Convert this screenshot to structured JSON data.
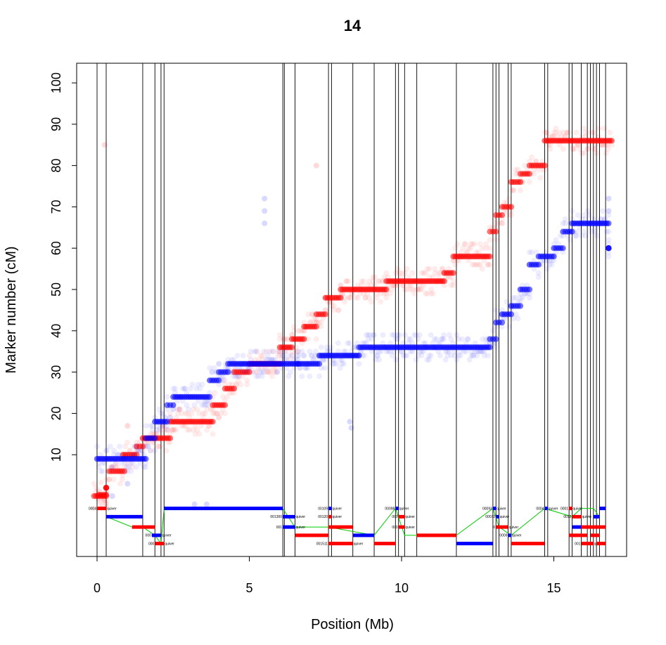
{
  "chart_data": {
    "type": "scatter",
    "title": "14",
    "xlabel": "Position (Mb)",
    "ylabel": "Marker number (cM)",
    "xlim": [
      -0.65,
      17.4
    ],
    "ylim": [
      -26,
      105
    ],
    "x_ticks": [
      0,
      5,
      10,
      15
    ],
    "y_ticks": [
      10,
      20,
      30,
      40,
      50,
      60,
      70,
      80,
      90,
      100
    ],
    "grid": false,
    "legend": "none",
    "colors": {
      "red": "#ff0000",
      "blue": "#0000ff",
      "green": "#00cc00",
      "black": "#000000"
    },
    "boundaries": [
      0.0,
      0.3,
      1.5,
      1.9,
      2.1,
      2.2,
      6.1,
      6.15,
      6.5,
      7.6,
      7.7,
      8.4,
      9.1,
      9.8,
      9.9,
      10.1,
      10.5,
      11.8,
      13.0,
      13.1,
      13.2,
      13.5,
      13.6,
      14.7,
      14.8,
      15.5,
      15.6,
      15.9,
      16.1,
      16.2,
      16.3,
      16.4,
      16.5,
      16.7
    ],
    "series": [
      {
        "name": "",
        "color": "#ff0000",
        "segments": [
          [
            -0.1,
            0.0,
            0.3
          ],
          [
            0.05,
            0.3,
            0.3
          ],
          [
            0.3,
            2.0,
            0.3
          ],
          [
            0.4,
            6.0,
            0.9
          ],
          [
            0.85,
            10.0,
            1.3
          ],
          [
            1.3,
            12.0,
            1.5
          ],
          [
            1.5,
            14.0,
            2.4
          ],
          [
            2.4,
            18.0,
            3.8
          ],
          [
            3.8,
            22.0,
            4.2
          ],
          [
            4.2,
            26.0,
            4.5
          ],
          [
            4.5,
            30.0,
            5.0
          ],
          [
            5.0,
            32.0,
            6.0
          ],
          [
            6.0,
            36.0,
            6.4
          ],
          [
            6.4,
            38.0,
            6.8
          ],
          [
            6.8,
            41.0,
            7.2
          ],
          [
            7.2,
            44.0,
            7.5
          ],
          [
            7.5,
            48.0,
            8.0
          ],
          [
            8.0,
            50.0,
            9.5
          ],
          [
            9.5,
            52.0,
            11.4
          ],
          [
            11.4,
            54.0,
            11.7
          ],
          [
            11.7,
            58.0,
            12.9
          ],
          [
            12.9,
            64.0,
            13.1
          ],
          [
            13.1,
            68.0,
            13.3
          ],
          [
            13.3,
            70.0,
            13.6
          ],
          [
            13.6,
            76.0,
            13.9
          ],
          [
            13.9,
            78.0,
            14.2
          ],
          [
            14.2,
            80.0,
            14.7
          ],
          [
            14.7,
            86.0,
            16.9
          ]
        ]
      },
      {
        "name": "",
        "color": "#0000ff",
        "segments": [
          [
            0.0,
            9.0,
            1.6
          ],
          [
            1.6,
            14.0,
            1.9
          ],
          [
            1.9,
            18.0,
            2.3
          ],
          [
            2.3,
            22.0,
            2.5
          ],
          [
            2.5,
            24.0,
            3.7
          ],
          [
            3.7,
            28.0,
            4.0
          ],
          [
            4.0,
            30.0,
            4.3
          ],
          [
            4.3,
            32.0,
            6.6
          ],
          [
            6.6,
            32.0,
            7.3
          ],
          [
            7.3,
            34.0,
            8.6
          ],
          [
            8.6,
            36.0,
            12.9
          ],
          [
            12.9,
            38.0,
            13.1
          ],
          [
            13.1,
            42.0,
            13.3
          ],
          [
            13.3,
            44.0,
            13.6
          ],
          [
            13.6,
            46.0,
            13.9
          ],
          [
            13.9,
            50.0,
            14.2
          ],
          [
            14.2,
            56.0,
            14.5
          ],
          [
            14.5,
            58.0,
            15.0
          ],
          [
            15.0,
            60.0,
            15.3
          ],
          [
            15.3,
            64.0,
            15.6
          ],
          [
            15.6,
            66.0,
            16.8
          ],
          [
            16.8,
            60.0,
            16.8
          ]
        ]
      }
    ],
    "contigs": [
      {
        "label": "0004",
        "color": "#ff0000",
        "x0": 0.0,
        "x1": 0.3,
        "y": -3
      },
      {
        "label": "",
        "color": "#0000ff",
        "x0": 0.3,
        "x1": 1.5,
        "y": -5
      },
      {
        "label": "",
        "color": "#ff0000",
        "x0": 1.15,
        "x1": 1.9,
        "y": -7.5
      },
      {
        "label": "000",
        "color": "#0000ff",
        "x0": 1.8,
        "x1": 2.1,
        "y": -9.5
      },
      {
        "label": "000",
        "color": "#ff0000",
        "x0": 1.9,
        "x1": 2.2,
        "y": -11.5
      },
      {
        "label": "",
        "color": "#0000ff",
        "x0": 2.2,
        "x1": 6.1,
        "y": -3
      },
      {
        "label": "001300",
        "color": "#0000ff",
        "x0": 6.1,
        "x1": 6.5,
        "y": -5
      },
      {
        "label": "001",
        "color": "#0000ff",
        "x0": 6.1,
        "x1": 6.5,
        "y": -7.5
      },
      {
        "label": "",
        "color": "#ff0000",
        "x0": 6.5,
        "x1": 7.6,
        "y": -9.5
      },
      {
        "label": "00109",
        "color": "#0000ff",
        "x0": 7.6,
        "x1": 7.7,
        "y": -3
      },
      {
        "label": "00120",
        "color": "#ff0000",
        "x0": 7.6,
        "x1": 7.7,
        "y": -5
      },
      {
        "label": "",
        "color": "#ff0000",
        "x0": 7.6,
        "x1": 8.4,
        "y": -7.5
      },
      {
        "label": "001511",
        "color": "#ff0000",
        "x0": 7.6,
        "x1": 8.4,
        "y": -11.5
      },
      {
        "label": "",
        "color": "#0000ff",
        "x0": 8.4,
        "x1": 9.1,
        "y": -9.5
      },
      {
        "label": "00098",
        "color": "#0000ff",
        "x0": 9.8,
        "x1": 9.9,
        "y": -3
      },
      {
        "label": "000",
        "color": "#ff0000",
        "x0": 9.9,
        "x1": 10.1,
        "y": -5
      },
      {
        "label": "000",
        "color": "#ff0000",
        "x0": 9.9,
        "x1": 10.1,
        "y": -7.5
      },
      {
        "label": "",
        "color": "#ff0000",
        "x0": 9.1,
        "x1": 9.8,
        "y": -11.5
      },
      {
        "label": "",
        "color": "#ff0000",
        "x0": 10.5,
        "x1": 11.8,
        "y": -9.5
      },
      {
        "label": "",
        "color": "#0000ff",
        "x0": 11.8,
        "x1": 13.0,
        "y": -11.5
      },
      {
        "label": "00093",
        "color": "#0000ff",
        "x0": 13.0,
        "x1": 13.1,
        "y": -3
      },
      {
        "label": "00072",
        "color": "#0000ff",
        "x0": 13.1,
        "x1": 13.2,
        "y": -5
      },
      {
        "label": "0",
        "color": "#ff0000",
        "x0": 13.1,
        "x1": 13.5,
        "y": -7.5
      },
      {
        "label": "0009",
        "color": "#0000ff",
        "x0": 13.5,
        "x1": 13.6,
        "y": -9.5
      },
      {
        "label": "",
        "color": "#ff0000",
        "x0": 13.6,
        "x1": 14.7,
        "y": -11.5
      },
      {
        "label": "0004",
        "color": "#0000ff",
        "x0": 14.7,
        "x1": 14.8,
        "y": -3
      },
      {
        "label": "0001",
        "color": "#ff0000",
        "x0": 15.5,
        "x1": 15.6,
        "y": -3
      },
      {
        "label": "0012",
        "color": "#ff0000",
        "x0": 15.6,
        "x1": 15.9,
        "y": -5
      },
      {
        "label": "",
        "color": "#0000ff",
        "x0": 15.6,
        "x1": 15.9,
        "y": -7.5
      },
      {
        "label": "",
        "color": "#ff0000",
        "x0": 15.9,
        "x1": 16.4,
        "y": -7.5
      },
      {
        "label": "",
        "color": "#ff0000",
        "x0": 15.5,
        "x1": 16.1,
        "y": -9.5
      },
      {
        "label": "001",
        "color": "#ff0000",
        "x0": 15.9,
        "x1": 16.3,
        "y": -11.5
      },
      {
        "label": "",
        "color": "#0000ff",
        "x0": 16.5,
        "x1": 16.7,
        "y": -3
      },
      {
        "label": "",
        "color": "#0000ff",
        "x0": 16.3,
        "x1": 16.5,
        "y": -5
      },
      {
        "label": "",
        "color": "#ff0000",
        "x0": 16.4,
        "x1": 16.7,
        "y": -7.5
      },
      {
        "label": "",
        "color": "#ff0000",
        "x0": 16.2,
        "x1": 16.5,
        "y": -9.5
      },
      {
        "label": "",
        "color": "#ff0000",
        "x0": 16.4,
        "x1": 16.7,
        "y": -11.5
      }
    ],
    "contig_suffix": "quiver",
    "green_path": [
      [
        0.3,
        -5
      ],
      [
        1.15,
        -7.5
      ],
      [
        1.5,
        -7.5
      ],
      [
        1.9,
        -9.5
      ],
      [
        2.1,
        -11.5
      ],
      [
        2.2,
        -3
      ],
      [
        6.1,
        -3
      ],
      [
        6.5,
        -7.5
      ],
      [
        7.6,
        -7.5
      ],
      [
        9.1,
        -9.5
      ],
      [
        9.8,
        -3
      ],
      [
        10.1,
        -9.5
      ],
      [
        11.8,
        -9.5
      ],
      [
        13.0,
        -3
      ],
      [
        13.2,
        -7.5
      ],
      [
        13.6,
        -9.5
      ],
      [
        14.7,
        -3
      ],
      [
        15.6,
        -5
      ],
      [
        15.9,
        -3
      ],
      [
        16.3,
        -3
      ],
      [
        16.5,
        -5
      ]
    ],
    "outliers": [
      {
        "color": "#ff0000",
        "x": 0.25,
        "y": 85
      },
      {
        "color": "#ff0000",
        "x": 7.2,
        "y": 80
      },
      {
        "color": "#0000ff",
        "x": 5.5,
        "y": 72
      },
      {
        "color": "#0000ff",
        "x": 5.5,
        "y": 69
      },
      {
        "color": "#0000ff",
        "x": 5.5,
        "y": 66
      },
      {
        "color": "#0000ff",
        "x": 8.3,
        "y": 18
      },
      {
        "color": "#0000ff",
        "x": 8.35,
        "y": 16.5
      },
      {
        "color": "#0000ff",
        "x": 0.5,
        "y": 0
      },
      {
        "color": "#0000ff",
        "x": 1.0,
        "y": 3
      },
      {
        "color": "#0000ff",
        "x": 3.2,
        "y": -2
      },
      {
        "color": "#0000ff",
        "x": 3.6,
        "y": -2
      },
      {
        "color": "#ff0000",
        "x": 1.0,
        "y": 17
      },
      {
        "color": "#0000ff",
        "x": 16.8,
        "y": 72
      },
      {
        "color": "#0000ff",
        "x": 16.8,
        "y": 69
      }
    ]
  }
}
